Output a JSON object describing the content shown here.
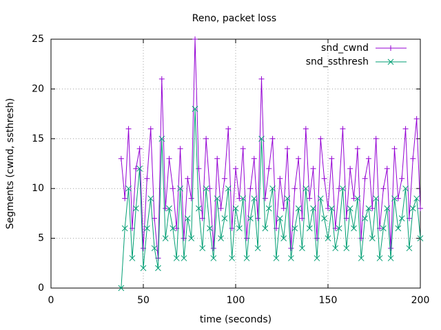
{
  "chart_data": {
    "type": "line",
    "title": "Reno, packet loss",
    "x_label": "time (seconds)",
    "y_label": "Segments (cwnd, ssthresh)",
    "x": [
      38,
      40,
      42,
      44,
      46,
      48,
      50,
      52,
      54,
      56,
      58,
      60,
      62,
      64,
      66,
      68,
      70,
      72,
      74,
      76,
      78,
      80,
      82,
      84,
      86,
      88,
      90,
      92,
      94,
      96,
      98,
      100,
      102,
      104,
      106,
      108,
      110,
      112,
      114,
      116,
      118,
      120,
      122,
      124,
      126,
      128,
      130,
      132,
      134,
      136,
      138,
      140,
      142,
      144,
      146,
      148,
      150,
      152,
      154,
      156,
      158,
      160,
      162,
      164,
      166,
      168,
      170,
      172,
      174,
      176,
      178,
      180,
      182,
      184,
      186,
      188,
      190,
      192,
      194,
      196,
      198,
      200
    ],
    "series": [
      {
        "name": "snd_cwnd",
        "color": "#9400d3",
        "marker": "plus",
        "values": [
          13,
          9,
          16,
          6,
          12,
          14,
          4,
          11,
          16,
          7,
          3,
          21,
          8,
          13,
          10,
          6,
          14,
          5,
          11,
          9,
          25,
          12,
          7,
          15,
          10,
          4,
          13,
          8,
          11,
          16,
          6,
          12,
          9,
          14,
          5,
          10,
          13,
          7,
          21,
          9,
          12,
          15,
          6,
          11,
          8,
          14,
          4,
          10,
          13,
          7,
          16,
          9,
          12,
          5,
          15,
          11,
          8,
          13,
          6,
          10,
          16,
          7,
          12,
          9,
          14,
          5,
          11,
          13,
          8,
          15,
          6,
          10,
          12,
          4,
          14,
          9,
          11,
          16,
          7,
          13,
          17,
          8
        ]
      },
      {
        "name": "snd_ssthresh",
        "color": "#009e73",
        "marker": "cross",
        "values": [
          0,
          6,
          10,
          3,
          8,
          12,
          2,
          6,
          9,
          4,
          2,
          15,
          5,
          8,
          6,
          3,
          10,
          3,
          7,
          5,
          18,
          8,
          4,
          10,
          6,
          3,
          9,
          5,
          7,
          10,
          3,
          8,
          6,
          9,
          3,
          7,
          9,
          4,
          15,
          6,
          8,
          10,
          3,
          7,
          5,
          9,
          3,
          6,
          8,
          4,
          10,
          6,
          8,
          3,
          9,
          7,
          5,
          8,
          4,
          6,
          10,
          4,
          8,
          6,
          9,
          3,
          7,
          8,
          5,
          9,
          3,
          6,
          8,
          3,
          9,
          6,
          7,
          10,
          4,
          8,
          9,
          5
        ]
      }
    ],
    "xlim": [
      0,
      200
    ],
    "xticks": [
      0,
      50,
      100,
      150,
      200
    ],
    "ylim": [
      0,
      25
    ],
    "yticks": [
      0,
      5,
      10,
      15,
      20,
      25
    ],
    "grid": true,
    "legend": "top right"
  }
}
